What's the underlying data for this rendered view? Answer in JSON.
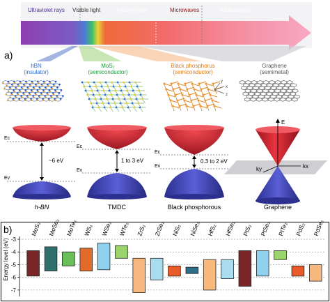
{
  "colors": {
    "band_cb": "#0b2a63",
    "band_vb": "#3b35a8",
    "cone_red": "#d3232f",
    "cone_blue": "#3a3fb3",
    "border": "#333333"
  },
  "spectrum": {
    "labels": [
      {
        "text": "Ultraviolet rays",
        "color": "#4b2f8f"
      },
      {
        "text": "Visible light",
        "color": "#333333"
      },
      {
        "text": "Infrared rays",
        "color": "#ffffff"
      },
      {
        "text": "Microwaves",
        "color": "#8b1a1a"
      },
      {
        "text": "Radiowaves",
        "color": "#ffffff"
      }
    ]
  },
  "panel_a": {
    "label": "a)",
    "materials": [
      {
        "name": "hBN",
        "type": "(insulator)",
        "color": "#2f6fd6"
      },
      {
        "name": "MoS₂",
        "type": "(semiconductor)",
        "color": "#1a9a3a"
      },
      {
        "name": "Black phosphorus",
        "type": "(semiconductor)",
        "color": "#e07a10"
      },
      {
        "name": "Graphene",
        "type": "(semimetal)",
        "color": "#555555"
      }
    ],
    "bands": [
      {
        "title": "h-BN",
        "gap": "~6 eV",
        "ec": "Ec",
        "ev": "Ev"
      },
      {
        "title": "TMDC",
        "gap": "1 to 3 eV",
        "ec": "Ec",
        "ev": "Ev"
      },
      {
        "title": "Black phosphorous",
        "gap": "0.3 to 2 eV",
        "ec": "Ec",
        "ev": "Ev"
      },
      {
        "title": "Graphene",
        "e": "E",
        "kx": "kx",
        "ky": "ky"
      }
    ],
    "axes_small": {
      "x": "x",
      "y": "y",
      "z": "z"
    }
  },
  "panel_b": {
    "label": "b)",
    "ylabel": "Energy level (eV)",
    "ylim": [
      -7.5,
      -3
    ],
    "yticks": [
      "-3",
      "-4",
      "-5",
      "-6",
      "-7"
    ]
  },
  "chart_data": {
    "type": "bar",
    "ylabel": "Energy level (eV)",
    "ylim": [
      -7.5,
      -3
    ],
    "categories": [
      "MoS₂",
      "MoSe₂",
      "MoTe₂",
      "WS₂",
      "WSe₂",
      "WTe₂",
      "ZrS₂",
      "ZrSe₂",
      "NiS₂",
      "NiSe₂",
      "HfS₂",
      "HfSe₂",
      "PtS₂",
      "PtSe₂",
      "PtTe₂",
      "PdS₂",
      "PdSe₂"
    ],
    "series": [
      {
        "top": [
          -3.9,
          -3.6,
          -4.0,
          -3.7,
          -3.3,
          -3.5,
          -4.5,
          -4.5,
          -5.1,
          -5.2,
          -4.6,
          -4.6,
          -3.9,
          -3.9,
          -3.9,
          -5.1,
          -5.0
        ],
        "bottom": [
          -5.9,
          -5.5,
          -5.1,
          -5.5,
          -5.4,
          -4.5,
          -7.2,
          -6.2,
          -5.9,
          -5.7,
          -7.0,
          -6.1,
          -6.7,
          -5.9,
          -4.6,
          -5.9,
          -6.3
        ],
        "colors": [
          "#7a2626",
          "#2d6f6c",
          "#6bbf5a",
          "#e36a2a",
          "#8fd1ee",
          "#9ad46a",
          "#f7b880",
          "#a9dcef",
          "#e85b2a",
          "#2b6f89",
          "#f9b97c",
          "#a9dcef",
          "#7a2626",
          "#8fd1ee",
          "#9ad46a",
          "#e85b2a",
          "#f7b880"
        ]
      }
    ]
  }
}
